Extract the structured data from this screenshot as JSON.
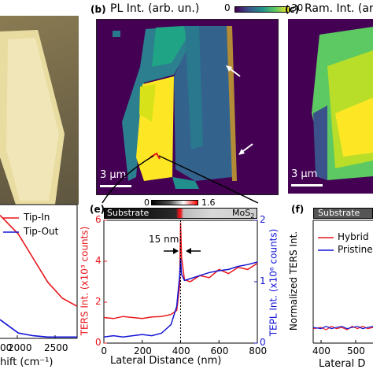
{
  "panels": {
    "b": {
      "tag": "(b)",
      "title": "PL Int. (arb. un.)",
      "colorbar_min": "0",
      "colorbar_max": "30",
      "scalebar": "3 μm"
    },
    "c": {
      "tag": "(c)",
      "title": "Ram. Int. (ar",
      "scalebar": "3 μm"
    },
    "d": {
      "legend": [
        "Tip-In",
        "Tip-Out"
      ],
      "xticks": [
        "2000",
        "2500"
      ],
      "xtick_partial": "00",
      "xlabel_partial": "hift (cm⁻¹)"
    },
    "e": {
      "tag": "(e)",
      "colorbar_min": "0",
      "colorbar_max": "1.6",
      "strip_left": "Substrate",
      "strip_right": "MoS",
      "strip_right_sub": "2",
      "annotation": "15 nm",
      "y_left_label": "TERS Int. (x10³ counts)",
      "y_right_label": "TEPL Int. (x10⁶ counts)",
      "xlabel": "Lateral Distance (nm)"
    },
    "f": {
      "tag": "(f)",
      "strip_left": "Substrate",
      "ylabel": "Normalized  TERS Int.",
      "legend": [
        "Hybrid",
        "Pristine"
      ],
      "xticks": [
        "400",
        "500"
      ],
      "xlabel_partial": "Lateral D"
    }
  },
  "colors": {
    "red": "#e8171d",
    "blue": "#1515d6",
    "viridis_dark": "#440154",
    "yellow": "#fde725"
  },
  "chart_data": [
    {
      "type": "line",
      "panel": "e",
      "x": [
        0,
        50,
        100,
        150,
        200,
        250,
        300,
        350,
        380,
        395,
        400,
        405,
        420,
        450,
        500,
        550,
        600,
        650,
        700,
        750,
        800
      ],
      "xlim": [
        0,
        800
      ],
      "xticks": [
        0,
        200,
        400,
        600,
        800
      ],
      "series": [
        {
          "axis": "left",
          "values": [
            1.25,
            1.2,
            1.3,
            1.25,
            1.2,
            1.28,
            1.3,
            1.4,
            1.6,
            2.8,
            5.9,
            4.2,
            3.1,
            3.0,
            3.3,
            3.2,
            3.6,
            3.4,
            3.7,
            3.6,
            3.9
          ]
        },
        {
          "axis": "right",
          "values": [
            0.1,
            0.12,
            0.1,
            0.12,
            0.14,
            0.12,
            0.16,
            0.3,
            0.6,
            1.1,
            1.38,
            1.12,
            1.02,
            1.05,
            1.1,
            1.15,
            1.18,
            1.2,
            1.25,
            1.28,
            1.32
          ]
        }
      ],
      "ylim_left": [
        0,
        6
      ],
      "yticks_left": [
        0,
        2,
        4,
        6
      ],
      "ylim_right": [
        0,
        2
      ],
      "yticks_right": [
        0,
        1,
        2
      ],
      "vline_x": 400
    },
    {
      "type": "line",
      "panel": "d",
      "x": [
        1750,
        2000,
        2200,
        2400,
        2600,
        2800
      ],
      "xlim": [
        1750,
        2800
      ],
      "series": [
        {
          "name": "Tip-In",
          "values": [
            0.92,
            0.78,
            0.6,
            0.42,
            0.3,
            0.24
          ]
        },
        {
          "name": "Tip-Out",
          "values": [
            0.14,
            0.04,
            0.02,
            0.01,
            0.01,
            0.01
          ]
        }
      ],
      "ylim": [
        0,
        1
      ]
    },
    {
      "type": "line",
      "panel": "f",
      "x": [
        370,
        400,
        420,
        440,
        460,
        480,
        500,
        520,
        540,
        560,
        580,
        600
      ],
      "xlim": [
        370,
        600
      ],
      "series": [
        {
          "name": "Hybrid",
          "values": [
            0.03,
            0.04,
            0.02,
            0.05,
            0.03,
            0.04,
            0.02,
            0.05,
            0.03,
            0.05,
            0.03,
            0.04
          ]
        },
        {
          "name": "Pristine",
          "values": [
            0.04,
            0.03,
            0.05,
            0.03,
            0.04,
            0.05,
            0.03,
            0.04,
            0.05,
            0.03,
            0.04,
            0.05
          ]
        }
      ],
      "ylim": [
        -0.1,
        1
      ]
    }
  ]
}
